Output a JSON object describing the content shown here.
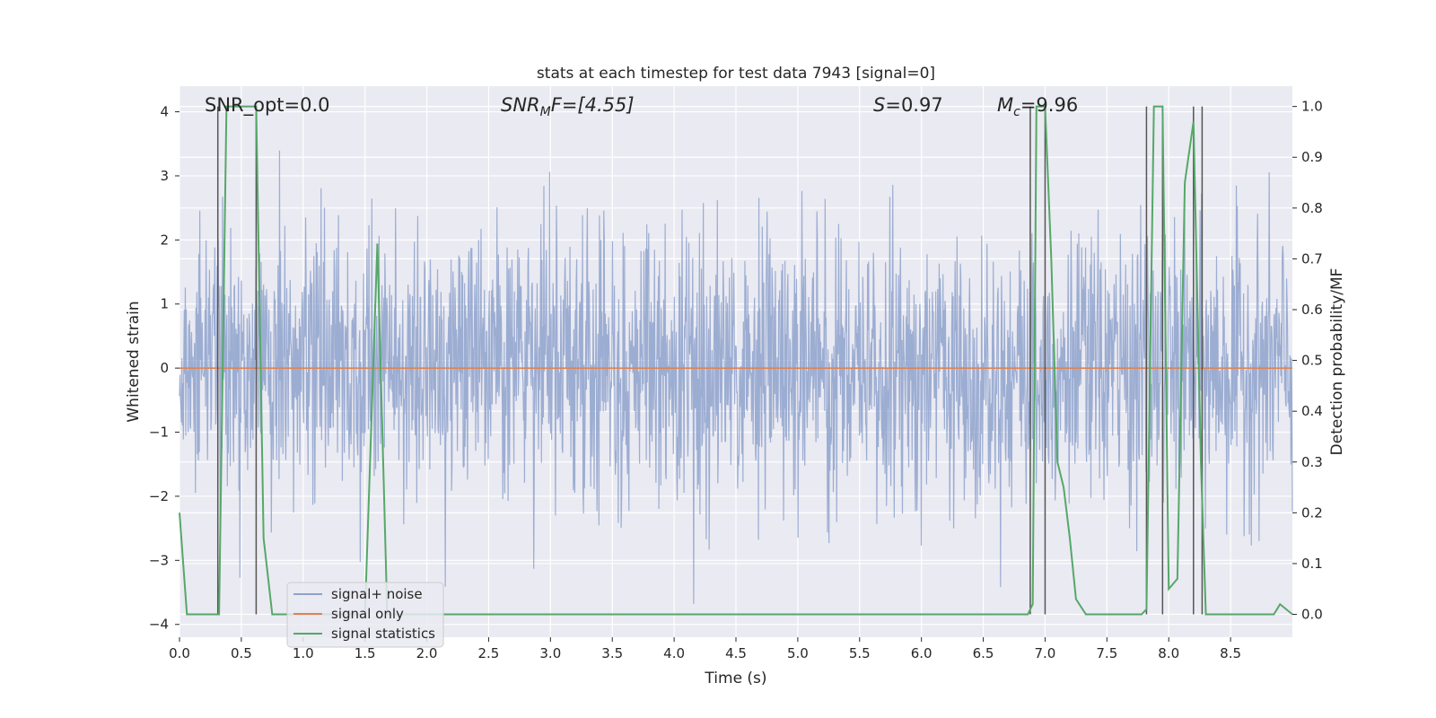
{
  "chart_data": {
    "type": "line",
    "title": "stats at each timestep for test data 7943 [signal=0]",
    "xlabel": "Time (s)",
    "ylabel": "Whitened strain",
    "ylabel_right": "Detection probability/MF",
    "xlim": [
      0.0,
      9.0
    ],
    "ylim": [
      -4.2,
      4.4
    ],
    "ylim_right": [
      -0.045,
      1.04
    ],
    "xticks": [
      "0.0",
      "0.5",
      "1.0",
      "1.5",
      "2.0",
      "2.5",
      "3.0",
      "3.5",
      "4.0",
      "4.5",
      "5.0",
      "5.5",
      "6.0",
      "6.5",
      "7.0",
      "7.5",
      "8.0",
      "8.5"
    ],
    "yticks": [
      "4",
      "3",
      "2",
      "1",
      "0",
      "−1",
      "−2",
      "−3",
      "−4"
    ],
    "yticks_right": [
      "1.0",
      "0.9",
      "0.8",
      "0.7",
      "0.6",
      "0.5",
      "0.4",
      "0.3",
      "0.2",
      "0.1",
      "0.0"
    ],
    "grid": true,
    "annotations": {
      "snr_opt": "SNR_opt=0.0",
      "snr_mf_base": "SNR",
      "snr_mf_sub": "M",
      "snr_mf_rest": "F=[4.55]",
      "s_sym": "S",
      "s_rest": "=0.97",
      "mc_base": "M",
      "mc_sub": "c",
      "mc_rest": "=9.96"
    },
    "legend": {
      "placement": "lower-left",
      "entries": [
        "signal+ noise",
        "signal only",
        "signal statistics"
      ]
    },
    "series": [
      {
        "name": "signal+ noise",
        "color": "#8ea2cc",
        "description": "whitened strain noise, approx. Gaussian, amplitude mostly within ±2.5"
      },
      {
        "name": "signal only",
        "color": "#dd8452",
        "x": [
          0.0,
          9.0
        ],
        "y": [
          0.0,
          0.0
        ]
      },
      {
        "name": "signal statistics",
        "color": "#55a868",
        "axis": "right",
        "x": [
          0.0,
          0.06,
          0.3,
          0.32,
          0.38,
          0.45,
          0.6,
          0.62,
          0.68,
          0.75,
          1.0,
          1.4,
          1.5,
          1.6,
          1.68,
          1.72,
          2.0,
          2.4,
          3.0,
          6.0,
          6.86,
          6.9,
          6.93,
          7.0,
          7.05,
          7.1,
          7.15,
          7.2,
          7.25,
          7.33,
          7.5,
          7.78,
          7.82,
          7.88,
          7.95,
          8.0,
          8.07,
          8.13,
          8.2,
          8.26,
          8.3,
          8.38,
          8.5,
          8.85,
          8.9,
          9.0
        ],
        "y": [
          0.2,
          0.0,
          0.0,
          0.0,
          1.0,
          1.0,
          1.0,
          1.0,
          0.15,
          0.0,
          0.0,
          0.0,
          0.0,
          0.73,
          0.0,
          0.0,
          0.0,
          0.0,
          0.0,
          0.0,
          0.0,
          0.02,
          1.0,
          1.0,
          0.7,
          0.3,
          0.25,
          0.15,
          0.03,
          0.0,
          0.0,
          0.0,
          0.01,
          1.0,
          1.0,
          0.05,
          0.07,
          0.85,
          0.97,
          0.3,
          0.0,
          0.0,
          0.0,
          0.0,
          0.02,
          0.0
        ]
      }
    ],
    "vertical_lines_x": [
      0.31,
      0.62,
      6.88,
      7.0,
      7.82,
      7.95,
      8.2,
      8.27
    ]
  }
}
